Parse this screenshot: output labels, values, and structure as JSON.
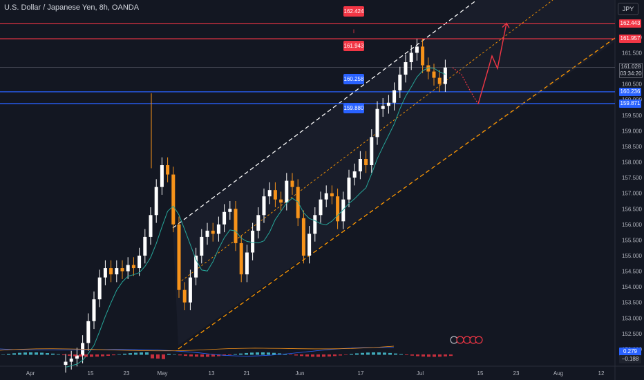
{
  "header": {
    "symbol_title": "U.S. Dollar / Japanese Yen, 8h, OANDA",
    "currency": "JPY"
  },
  "colors": {
    "background": "#131722",
    "bull": "#ffffff",
    "bear": "#f7931a",
    "resistance": "#f23645",
    "support": "#2962ff",
    "ma": "#26a69a",
    "channel_upper": "#ffffff",
    "channel_lower": "#ff9800",
    "projection": "#f23645"
  },
  "chart_data": {
    "type": "candlestick",
    "title": "U.S. Dollar / Japanese Yen, 8h, OANDA",
    "ylim": [
      151.9,
      162.75
    ],
    "y_ticks": [
      "162.000",
      "161.500",
      "160.500",
      "160.000",
      "159.500",
      "159.000",
      "158.500",
      "158.000",
      "157.500",
      "157.000",
      "156.500",
      "156.000",
      "155.500",
      "155.000",
      "154.500",
      "154.000",
      "153.500",
      "153.000",
      "152.500",
      "152.000"
    ],
    "x_ticks": [
      "Apr",
      "15",
      "23",
      "May",
      "13",
      "21",
      "Jun",
      "17",
      "Jul",
      "15",
      "23",
      "Aug",
      "12"
    ],
    "levels": [
      {
        "label": "162.424",
        "axis_label": "162.443",
        "value": 162.43,
        "color": "red"
      },
      {
        "label": "161.943",
        "axis_label": "161.957",
        "value": 161.95,
        "color": "red"
      },
      {
        "label": "160.258",
        "axis_label": "160.236",
        "value": 160.25,
        "color": "blue"
      },
      {
        "label": "159.880",
        "axis_label": "159.871",
        "value": 159.875,
        "color": "blue"
      }
    ],
    "current_price": {
      "value": "161.028",
      "countdown": "03:34:20"
    },
    "oscillator": {
      "values": [
        "0.279",
        "−0.188"
      ]
    },
    "candles_approx_close": [
      151.6,
      151.7,
      151.8,
      152.2,
      152.9,
      153.6,
      154.3,
      154.6,
      154.4,
      154.6,
      154.5,
      154.7,
      154.6,
      155.0,
      155.6,
      156.3,
      157.2,
      157.9,
      157.6,
      156.0,
      153.9,
      153.5,
      154.3,
      155.0,
      155.6,
      155.8,
      155.7,
      156.0,
      156.4,
      156.5,
      155.4,
      154.4,
      155.1,
      155.8,
      156.3,
      156.9,
      157.1,
      156.8,
      156.7,
      157.4,
      157.2,
      156.2,
      155.0,
      155.7,
      156.3,
      156.8,
      157.0,
      156.9,
      156.1,
      156.8,
      157.5,
      157.7,
      158.1,
      157.9,
      158.8,
      159.7,
      159.8,
      159.9,
      160.3,
      160.8,
      161.2,
      161.5,
      161.7,
      161.1,
      160.9,
      160.7,
      160.5,
      161.03
    ],
    "projection_path": [
      "161.03",
      "160.8",
      "160.3",
      "159.86",
      "161.4",
      "161.0",
      "162.45"
    ]
  }
}
